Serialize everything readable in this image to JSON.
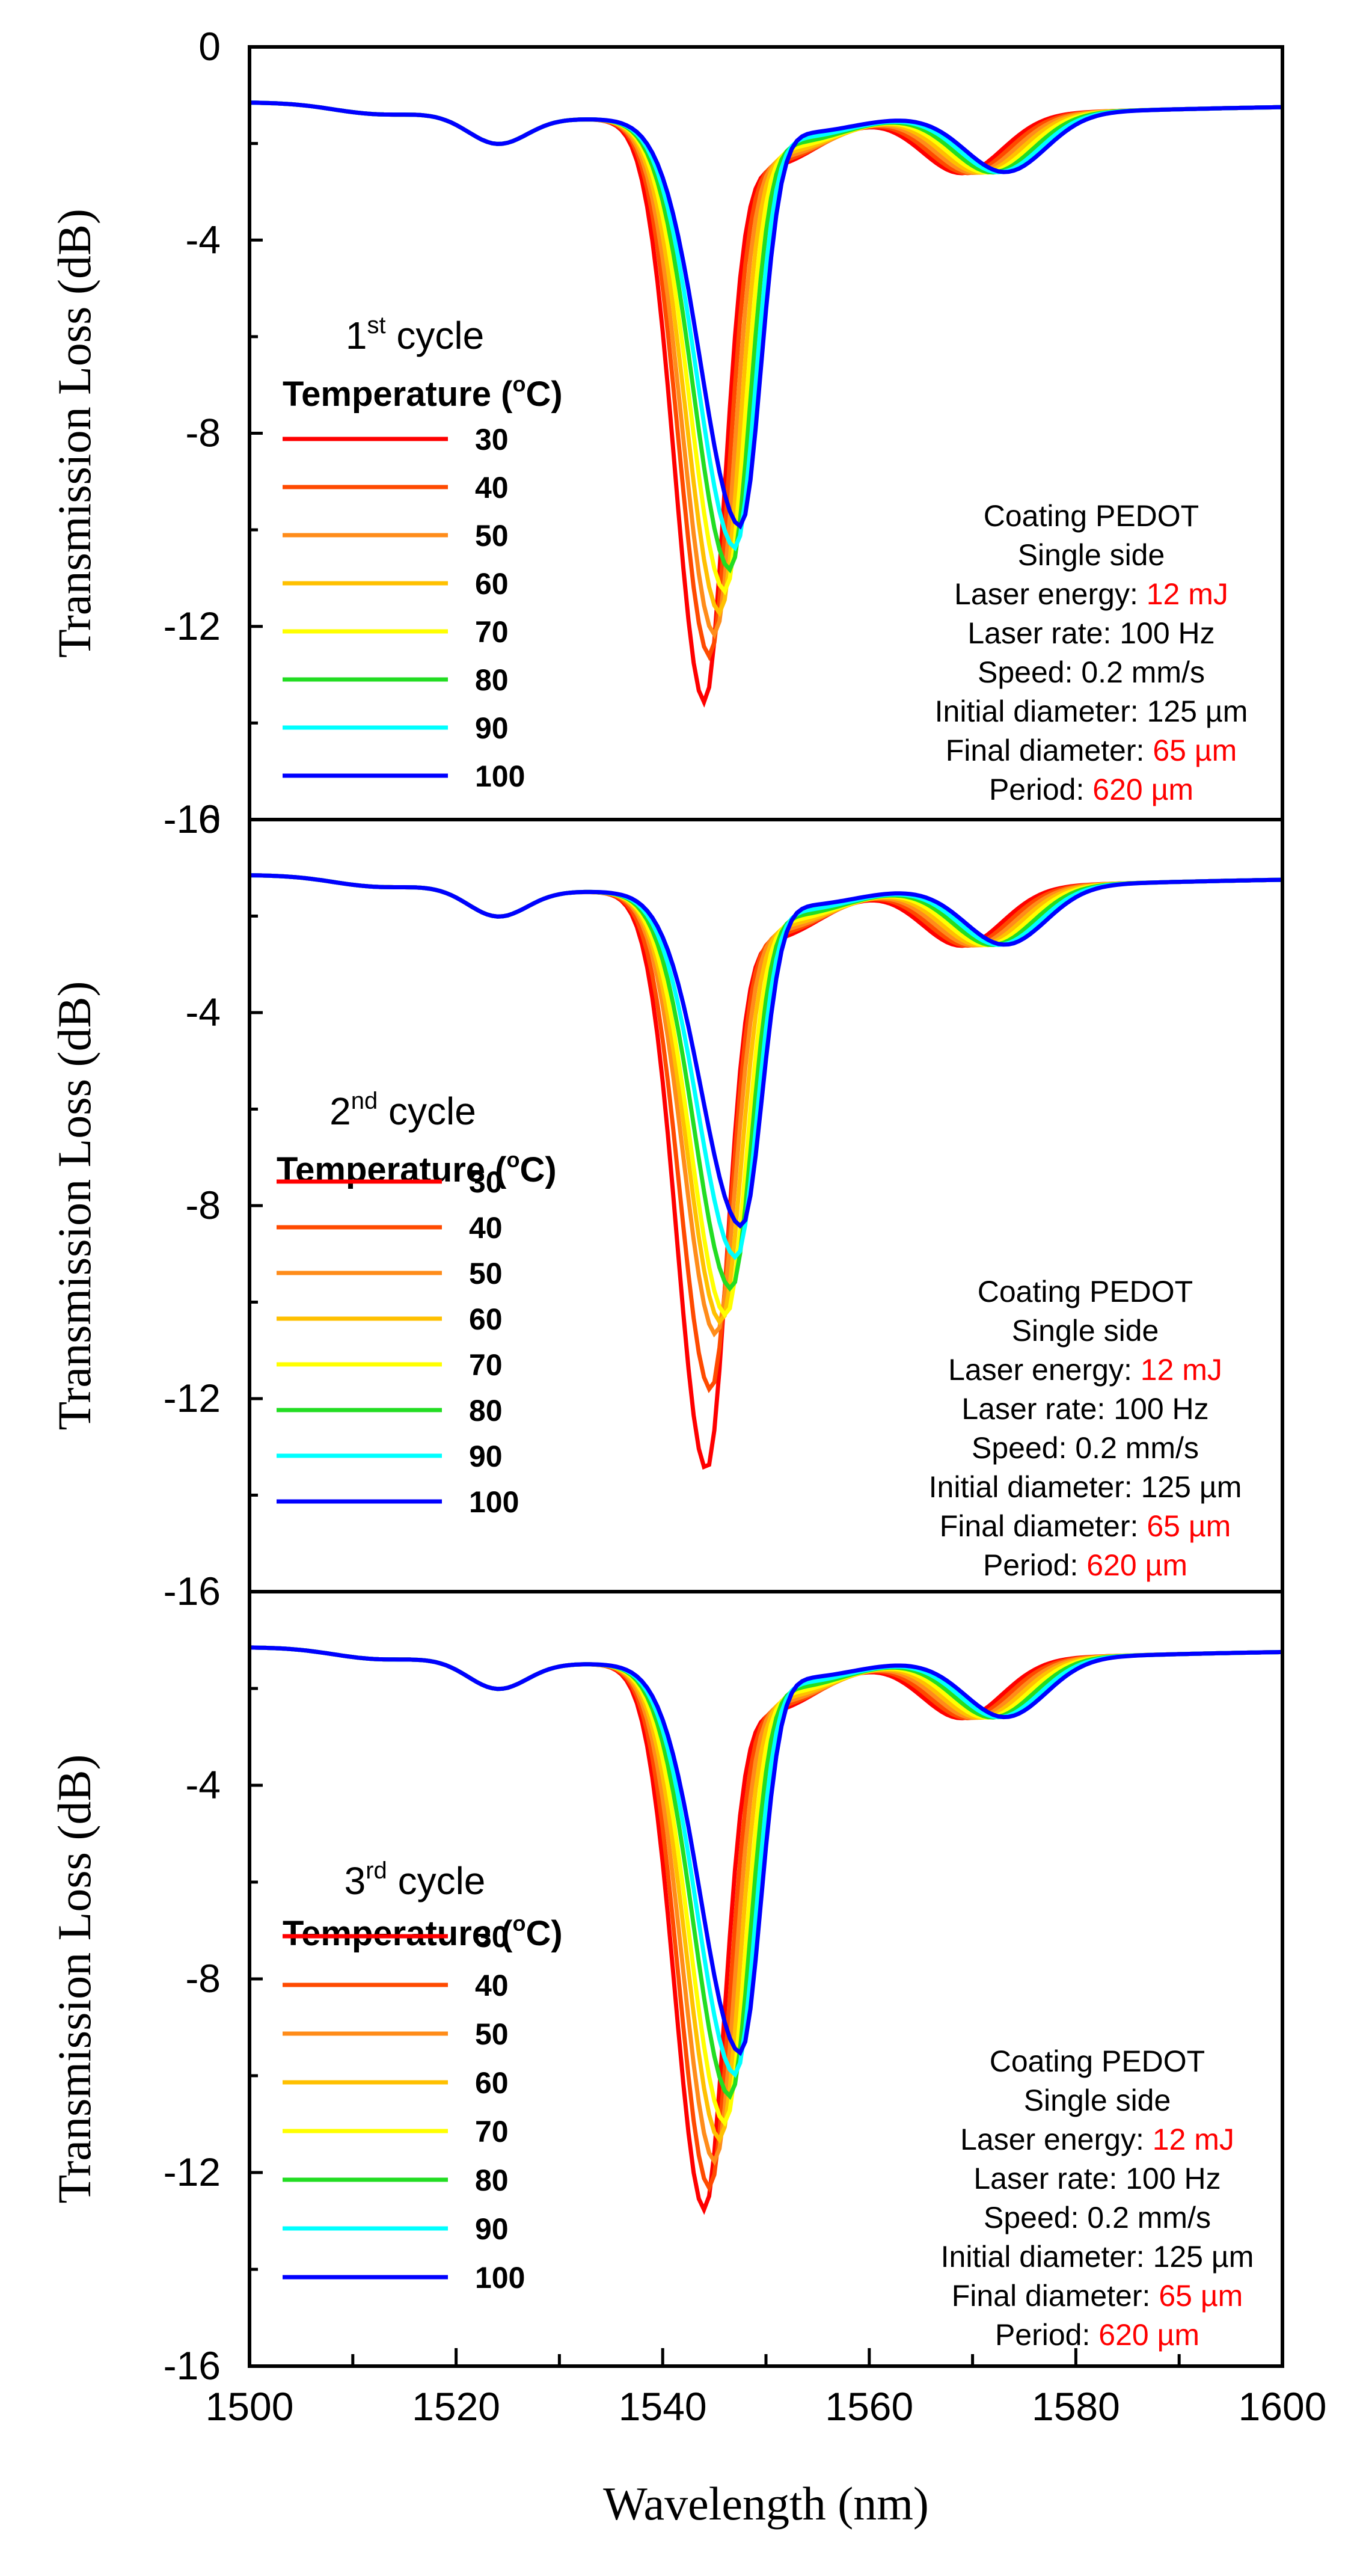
{
  "chart_data": {
    "type": "line",
    "xlabel": "Wavelength (nm)",
    "ylabel": "Transmission Loss (dB)",
    "xlim": [
      1500,
      1600
    ],
    "xticks": [
      1500,
      1520,
      1540,
      1560,
      1580,
      1600
    ],
    "legend_title": "Temperature (",
    "legend_title_sup": "o",
    "legend_title_end": "C)",
    "series_names": [
      "30",
      "40",
      "50",
      "60",
      "70",
      "80",
      "90",
      "100"
    ],
    "series_colors": [
      "#ff0000",
      "#ff4a00",
      "#ff8c1a",
      "#ffc000",
      "#ffff00",
      "#22dd22",
      "#00ffff",
      "#0000ff"
    ],
    "x": [
      1500,
      1505,
      1510,
      1515,
      1520,
      1525,
      1530,
      1533,
      1536,
      1538,
      1540,
      1542,
      1544,
      1546,
      1548,
      1550,
      1552,
      1554,
      1556,
      1558,
      1560,
      1562,
      1565,
      1568,
      1571,
      1574,
      1577,
      1580,
      1585,
      1590,
      1595,
      1600
    ],
    "info": {
      "coating": "Coating PEDOT",
      "side": "Single side",
      "laser_energy_label": "Laser energy: ",
      "laser_energy_value": "12 mJ",
      "laser_rate": "Laser rate: 100 Hz",
      "speed": "Speed: 0.2 mm/s",
      "initial_diameter": "Initial diameter: 125 µm",
      "final_diameter_label": "Final diameter: ",
      "final_diameter_value": "65 µm",
      "period_label": "Period: ",
      "period_value": "620 µm"
    },
    "panels": [
      {
        "cycle_num": "1",
        "cycle_sup": "st",
        "cycle_rest": " cycle",
        "ylim": [
          -16,
          0
        ],
        "yticks": [
          -16,
          -12,
          -8,
          -4,
          0
        ],
        "min_depths": [
          -13.0,
          -12.1,
          -11.7,
          -11.3,
          -10.9,
          -10.5,
          -10.1,
          -9.7
        ],
        "min_wavelengths": [
          1544.0,
          1544.5,
          1545.0,
          1545.5,
          1546.0,
          1546.5,
          1547.0,
          1547.5
        ]
      },
      {
        "cycle_num": "2",
        "cycle_sup": "nd",
        "cycle_rest": " cycle",
        "ylim": [
          -16,
          0
        ],
        "yticks": [
          -16,
          -12,
          -8,
          -4,
          0
        ],
        "min_depths": [
          -12.9,
          -11.3,
          -10.2,
          -10.0,
          -9.9,
          -9.4,
          -8.8,
          -8.2
        ],
        "min_wavelengths": [
          1544.2,
          1544.6,
          1545.1,
          1545.6,
          1546.1,
          1546.6,
          1547.1,
          1547.6
        ]
      },
      {
        "cycle_num": "3",
        "cycle_sup": "rd",
        "cycle_rest": " cycle",
        "ylim": [
          -16,
          0
        ],
        "yticks": [
          -16,
          -12,
          -8,
          -4
        ],
        "min_depths": [
          -12.2,
          -11.8,
          -11.3,
          -10.9,
          -10.6,
          -10.1,
          -9.7,
          -9.3
        ],
        "min_wavelengths": [
          1544.0,
          1544.5,
          1545.0,
          1545.5,
          1546.0,
          1546.5,
          1547.0,
          1547.5
        ]
      }
    ]
  }
}
